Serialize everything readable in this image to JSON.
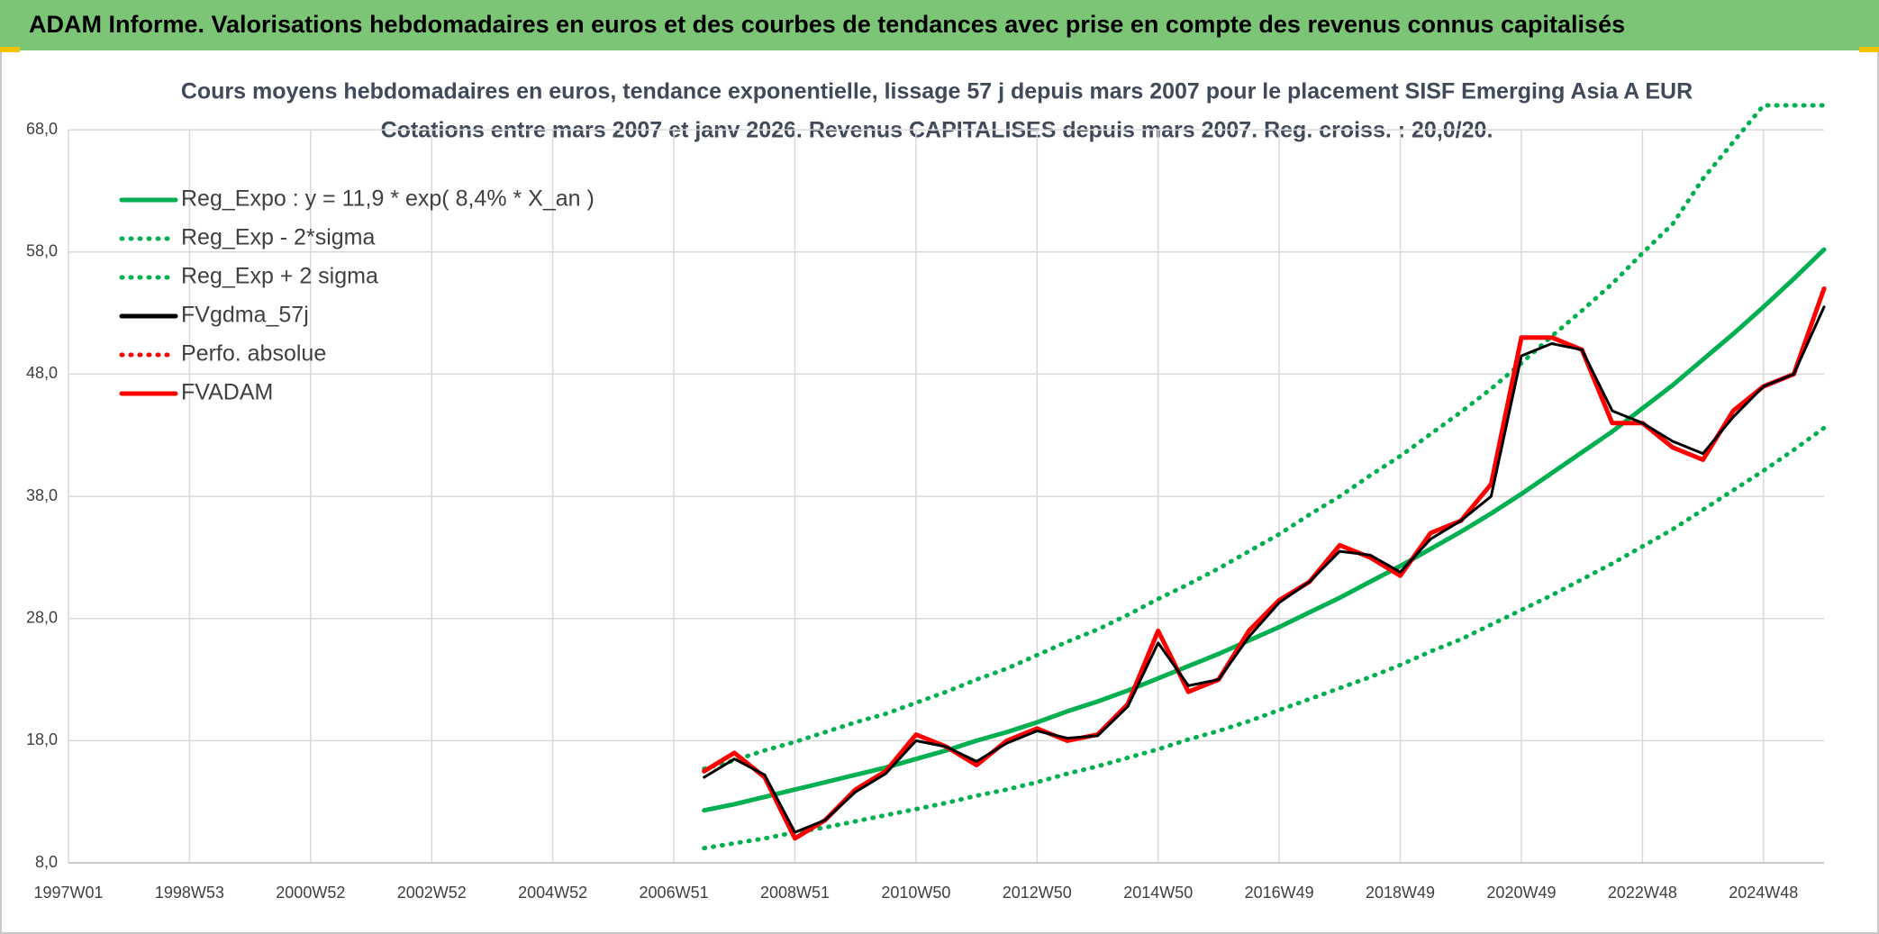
{
  "header": {
    "title": "ADAM Informe. Valorisations hebdomadaires en euros et des courbes de tendances avec prise en compte des revenus connus capitalisés"
  },
  "chart_data": {
    "type": "line",
    "title": "Cours moyens hebdomadaires en euros, tendance exponentielle, lissage 57 j depuis mars 2007 pour le placement SISF Emerging Asia A EUR",
    "subtitle": "Cotations entre mars 2007 et janv 2026. Revenus CAPITALISES depuis mars 2007. Reg. croiss. : 20,0/20.",
    "categories": [
      "1997W01",
      null,
      null,
      null,
      "1998W53",
      null,
      null,
      null,
      "2000W52",
      null,
      null,
      null,
      "2002W52",
      null,
      null,
      null,
      "2004W52",
      null,
      null,
      null,
      "2006W51",
      null,
      null,
      null,
      "2008W51",
      null,
      null,
      null,
      "2010W50",
      null,
      null,
      null,
      "2012W50",
      null,
      null,
      null,
      "2014W50",
      null,
      null,
      null,
      "2016W49",
      null,
      null,
      null,
      "2018W49",
      null,
      null,
      null,
      "2020W49",
      null,
      null,
      null,
      "2022W48",
      null,
      null,
      null,
      "2024W48",
      null,
      null
    ],
    "ylim": [
      8,
      70
    ],
    "yticks": [
      {
        "value": 8,
        "label": "8,0"
      },
      {
        "value": 18,
        "label": "18,0"
      },
      {
        "value": 28,
        "label": "28,0"
      },
      {
        "value": 38,
        "label": "38,0"
      },
      {
        "value": 48,
        "label": "48,0"
      },
      {
        "value": 58,
        "label": "58,0"
      },
      {
        "value": 68,
        "label": "68,0"
      }
    ],
    "grid": true,
    "legend": "top-left",
    "series": [
      {
        "name": "Reg_Expo : y = 11,9 * exp( 8,4% *  X_an )",
        "color": "#00b050",
        "style": "solid",
        "values": [
          null,
          null,
          null,
          null,
          null,
          null,
          null,
          null,
          null,
          null,
          null,
          null,
          null,
          null,
          null,
          null,
          null,
          null,
          null,
          null,
          null,
          12.3,
          12.8,
          13.4,
          14.0,
          14.6,
          15.2,
          15.8,
          16.5,
          17.2,
          18.0,
          18.7,
          19.5,
          20.4,
          21.2,
          22.1,
          23.1,
          24.1,
          25.1,
          26.2,
          27.3,
          28.5,
          29.7,
          31.0,
          32.3,
          33.7,
          35.1,
          36.6,
          38.2,
          39.9,
          41.6,
          43.3,
          45.2,
          47.1,
          49.2,
          51.3,
          53.5,
          55.8,
          58.2
        ]
      },
      {
        "name": "Reg_Exp - 2*sigma",
        "color": "#00b050",
        "style": "dotted",
        "values": [
          null,
          null,
          null,
          null,
          null,
          null,
          null,
          null,
          null,
          null,
          null,
          null,
          null,
          null,
          null,
          null,
          null,
          null,
          null,
          null,
          null,
          9.2,
          9.6,
          10.0,
          10.5,
          10.9,
          11.4,
          11.9,
          12.4,
          12.9,
          13.5,
          14.0,
          14.6,
          15.3,
          15.9,
          16.6,
          17.3,
          18.1,
          18.8,
          19.6,
          20.5,
          21.4,
          22.3,
          23.2,
          24.2,
          25.3,
          26.3,
          27.5,
          28.7,
          29.9,
          31.2,
          32.5,
          33.9,
          35.3,
          36.9,
          38.5,
          40.1,
          41.8,
          43.6
        ]
      },
      {
        "name": "Reg_Exp + 2 sigma",
        "color": "#00b050",
        "style": "dotted",
        "values": [
          null,
          null,
          null,
          null,
          null,
          null,
          null,
          null,
          null,
          null,
          null,
          null,
          null,
          null,
          null,
          null,
          null,
          null,
          null,
          null,
          null,
          15.7,
          16.4,
          17.2,
          17.9,
          18.7,
          19.5,
          20.2,
          21.1,
          22.0,
          23.0,
          23.9,
          25.0,
          26.1,
          27.1,
          28.3,
          29.6,
          30.8,
          32.1,
          33.5,
          34.9,
          36.5,
          38.0,
          39.7,
          41.3,
          43.1,
          44.9,
          46.8,
          48.9,
          51.1,
          53.2,
          55.4,
          57.9,
          60.3,
          64.0,
          67.0,
          70,
          70,
          70
        ]
      },
      {
        "name": "FVgdma_57j",
        "color": "#000000",
        "style": "solid",
        "values": [
          null,
          null,
          null,
          null,
          null,
          null,
          null,
          null,
          null,
          null,
          null,
          null,
          null,
          null,
          null,
          null,
          null,
          null,
          null,
          null,
          null,
          15,
          16.5,
          15.2,
          10.5,
          11.5,
          13.8,
          15.3,
          18,
          17.5,
          16.3,
          17.8,
          18.8,
          18.2,
          18.4,
          20.8,
          26,
          22.5,
          23,
          26.5,
          29.3,
          31,
          33.5,
          33.2,
          31.8,
          34.5,
          36,
          38,
          49.5,
          50.5,
          50,
          45,
          44,
          42.5,
          41.5,
          44.5,
          47,
          48,
          53.5
        ]
      },
      {
        "name": "Perfo. absolue",
        "color": "#ff0000",
        "style": "dotted",
        "values": [
          null,
          null,
          null,
          null,
          null,
          null,
          null,
          null,
          null,
          null,
          null,
          null,
          null,
          null,
          null,
          null,
          null,
          null,
          null,
          null,
          null,
          null,
          null,
          null,
          null,
          null,
          null,
          null,
          null,
          null,
          null,
          null,
          null,
          null,
          null,
          null,
          null,
          null,
          null,
          null,
          null,
          null,
          null,
          null,
          null,
          null,
          null,
          null,
          null,
          null,
          null,
          null,
          null,
          null,
          null,
          null,
          null,
          null,
          null
        ]
      },
      {
        "name": "FVADAM",
        "color": "#ff0000",
        "style": "solid",
        "values": [
          null,
          null,
          null,
          null,
          null,
          null,
          null,
          null,
          null,
          null,
          null,
          null,
          null,
          null,
          null,
          null,
          null,
          null,
          null,
          null,
          null,
          15.5,
          17,
          15,
          10,
          11.5,
          14,
          15.5,
          18.5,
          17.5,
          16,
          18,
          19,
          18,
          18.5,
          21,
          27,
          22,
          23,
          27,
          29.5,
          31,
          34,
          33,
          31.5,
          35,
          36,
          39,
          51,
          51,
          50,
          44,
          44,
          42,
          41,
          45,
          47,
          48,
          55
        ]
      }
    ]
  }
}
